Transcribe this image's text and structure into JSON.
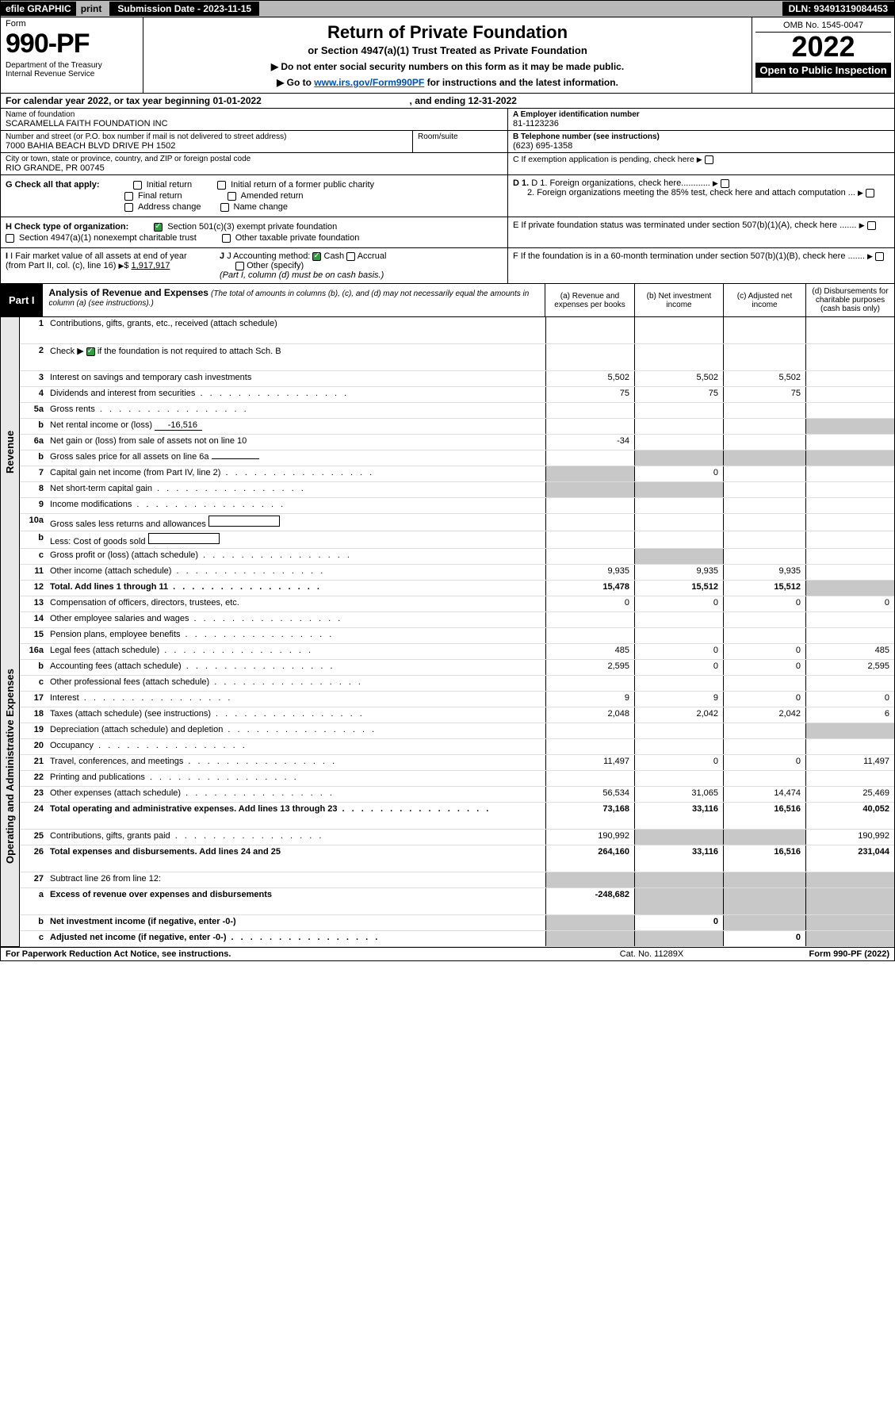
{
  "topbar": {
    "efile": "efile GRAPHIC",
    "print": "print",
    "submission_date": "Submission Date - 2023-11-15",
    "dln": "DLN: 93491319084453"
  },
  "header": {
    "form_label": "Form",
    "form_number": "990-PF",
    "dept": "Department of the Treasury\nInternal Revenue Service",
    "title": "Return of Private Foundation",
    "subtitle": "or Section 4947(a)(1) Trust Treated as Private Foundation",
    "note1": "▶ Do not enter social security numbers on this form as it may be made public.",
    "note2_pre": "▶ Go to ",
    "note2_link": "www.irs.gov/Form990PF",
    "note2_post": " for instructions and the latest information.",
    "omb": "OMB No. 1545-0047",
    "year": "2022",
    "open": "Open to Public Inspection"
  },
  "calendar": {
    "text_pre": "For calendar year 2022, or tax year beginning ",
    "begin": "01-01-2022",
    "text_mid": " , and ending ",
    "end": "12-31-2022"
  },
  "info": {
    "name_label": "Name of foundation",
    "name": "SCARAMELLA FAITH FOUNDATION INC",
    "addr_label": "Number and street (or P.O. box number if mail is not delivered to street address)",
    "addr": "7000 BAHIA BEACH BLVD DRIVE PH 1502",
    "room_label": "Room/suite",
    "city_label": "City or town, state or province, country, and ZIP or foreign postal code",
    "city": "RIO GRANDE, PR  00745",
    "ein_label": "A Employer identification number",
    "ein": "81-1123236",
    "phone_label": "B Telephone number (see instructions)",
    "phone": "(623) 695-1358",
    "c_label": "C If exemption application is pending, check here",
    "d1": "D 1. Foreign organizations, check here............",
    "d2": "2. Foreign organizations meeting the 85% test, check here and attach computation ...",
    "e_label": "E  If private foundation status was terminated under section 507(b)(1)(A), check here .......",
    "f_label": "F  If the foundation is in a 60-month termination under section 507(b)(1)(B), check here ......."
  },
  "checks": {
    "g_label": "G Check all that apply:",
    "initial": "Initial return",
    "initial_former": "Initial return of a former public charity",
    "final": "Final return",
    "amended": "Amended return",
    "address": "Address change",
    "name": "Name change",
    "h_label": "H Check type of organization:",
    "h_501c3": "Section 501(c)(3) exempt private foundation",
    "h_4947": "Section 4947(a)(1) nonexempt charitable trust",
    "h_other": "Other taxable private foundation",
    "i_label": "I Fair market value of all assets at end of year (from Part II, col. (c), line 16)",
    "i_value": "1,917,917",
    "j_label": "J Accounting method:",
    "j_cash": "Cash",
    "j_accrual": "Accrual",
    "j_other": "Other (specify)",
    "j_note": "(Part I, column (d) must be on cash basis.)"
  },
  "part1": {
    "label": "Part I",
    "title": "Analysis of Revenue and Expenses",
    "subtitle": "(The total of amounts in columns (b), (c), and (d) may not necessarily equal the amounts in column (a) (see instructions).)",
    "col_a": "(a)   Revenue and expenses per books",
    "col_b": "(b)   Net investment income",
    "col_c": "(c)   Adjusted net income",
    "col_d": "(d)   Disbursements for charitable purposes (cash basis only)"
  },
  "side": {
    "revenue": "Revenue",
    "expenses": "Operating and Administrative Expenses"
  },
  "rows": {
    "r1": {
      "ln": "1",
      "desc": "Contributions, gifts, grants, etc., received (attach schedule)"
    },
    "r2": {
      "ln": "2",
      "desc": "Check ▶",
      "desc2": "if the foundation is not required to attach Sch. B"
    },
    "r3": {
      "ln": "3",
      "desc": "Interest on savings and temporary cash investments",
      "a": "5,502",
      "b": "5,502",
      "c": "5,502"
    },
    "r4": {
      "ln": "4",
      "desc": "Dividends and interest from securities",
      "a": "75",
      "b": "75",
      "c": "75"
    },
    "r5a": {
      "ln": "5a",
      "desc": "Gross rents"
    },
    "r5b": {
      "ln": "b",
      "desc": "Net rental income or (loss)",
      "inline": "-16,516"
    },
    "r6a": {
      "ln": "6a",
      "desc": "Net gain or (loss) from sale of assets not on line 10",
      "a": "-34"
    },
    "r6b": {
      "ln": "b",
      "desc": "Gross sales price for all assets on line 6a"
    },
    "r7": {
      "ln": "7",
      "desc": "Capital gain net income (from Part IV, line 2)",
      "b": "0"
    },
    "r8": {
      "ln": "8",
      "desc": "Net short-term capital gain"
    },
    "r9": {
      "ln": "9",
      "desc": "Income modifications"
    },
    "r10a": {
      "ln": "10a",
      "desc": "Gross sales less returns and allowances"
    },
    "r10b": {
      "ln": "b",
      "desc": "Less: Cost of goods sold"
    },
    "r10c": {
      "ln": "c",
      "desc": "Gross profit or (loss) (attach schedule)"
    },
    "r11": {
      "ln": "11",
      "desc": "Other income (attach schedule)",
      "a": "9,935",
      "b": "9,935",
      "c": "9,935"
    },
    "r12": {
      "ln": "12",
      "desc": "Total. Add lines 1 through 11",
      "a": "15,478",
      "b": "15,512",
      "c": "15,512"
    },
    "r13": {
      "ln": "13",
      "desc": "Compensation of officers, directors, trustees, etc.",
      "a": "0",
      "b": "0",
      "c": "0",
      "d": "0"
    },
    "r14": {
      "ln": "14",
      "desc": "Other employee salaries and wages"
    },
    "r15": {
      "ln": "15",
      "desc": "Pension plans, employee benefits"
    },
    "r16a": {
      "ln": "16a",
      "desc": "Legal fees (attach schedule)",
      "a": "485",
      "b": "0",
      "c": "0",
      "d": "485"
    },
    "r16b": {
      "ln": "b",
      "desc": "Accounting fees (attach schedule)",
      "a": "2,595",
      "b": "0",
      "c": "0",
      "d": "2,595"
    },
    "r16c": {
      "ln": "c",
      "desc": "Other professional fees (attach schedule)"
    },
    "r17": {
      "ln": "17",
      "desc": "Interest",
      "a": "9",
      "b": "9",
      "c": "0",
      "d": "0"
    },
    "r18": {
      "ln": "18",
      "desc": "Taxes (attach schedule) (see instructions)",
      "a": "2,048",
      "b": "2,042",
      "c": "2,042",
      "d": "6"
    },
    "r19": {
      "ln": "19",
      "desc": "Depreciation (attach schedule) and depletion"
    },
    "r20": {
      "ln": "20",
      "desc": "Occupancy"
    },
    "r21": {
      "ln": "21",
      "desc": "Travel, conferences, and meetings",
      "a": "11,497",
      "b": "0",
      "c": "0",
      "d": "11,497"
    },
    "r22": {
      "ln": "22",
      "desc": "Printing and publications"
    },
    "r23": {
      "ln": "23",
      "desc": "Other expenses (attach schedule)",
      "a": "56,534",
      "b": "31,065",
      "c": "14,474",
      "d": "25,469"
    },
    "r24": {
      "ln": "24",
      "desc": "Total operating and administrative expenses. Add lines 13 through 23",
      "a": "73,168",
      "b": "33,116",
      "c": "16,516",
      "d": "40,052"
    },
    "r25": {
      "ln": "25",
      "desc": "Contributions, gifts, grants paid",
      "a": "190,992",
      "d": "190,992"
    },
    "r26": {
      "ln": "26",
      "desc": "Total expenses and disbursements. Add lines 24 and 25",
      "a": "264,160",
      "b": "33,116",
      "c": "16,516",
      "d": "231,044"
    },
    "r27": {
      "ln": "27",
      "desc": "Subtract line 26 from line 12:"
    },
    "r27a": {
      "ln": "a",
      "desc": "Excess of revenue over expenses and disbursements",
      "a": "-248,682"
    },
    "r27b": {
      "ln": "b",
      "desc": "Net investment income (if negative, enter -0-)",
      "b": "0"
    },
    "r27c": {
      "ln": "c",
      "desc": "Adjusted net income (if negative, enter -0-)",
      "c": "0"
    }
  },
  "footer": {
    "left": "For Paperwork Reduction Act Notice, see instructions.",
    "center": "Cat. No. 11289X",
    "right": "Form 990-PF (2022)"
  },
  "colors": {
    "topbar_gray": "#b8b8b8",
    "black": "#000000",
    "link": "#0050b3",
    "check_green": "#2e9e3f",
    "row_border": "#dddddd",
    "gray_cell": "#c8c8c8",
    "side_bg": "#e8e8e8"
  },
  "font_sizes": {
    "form_number": 34,
    "year": 36,
    "h1": 22,
    "body": 11,
    "small": 10,
    "part": 13
  }
}
